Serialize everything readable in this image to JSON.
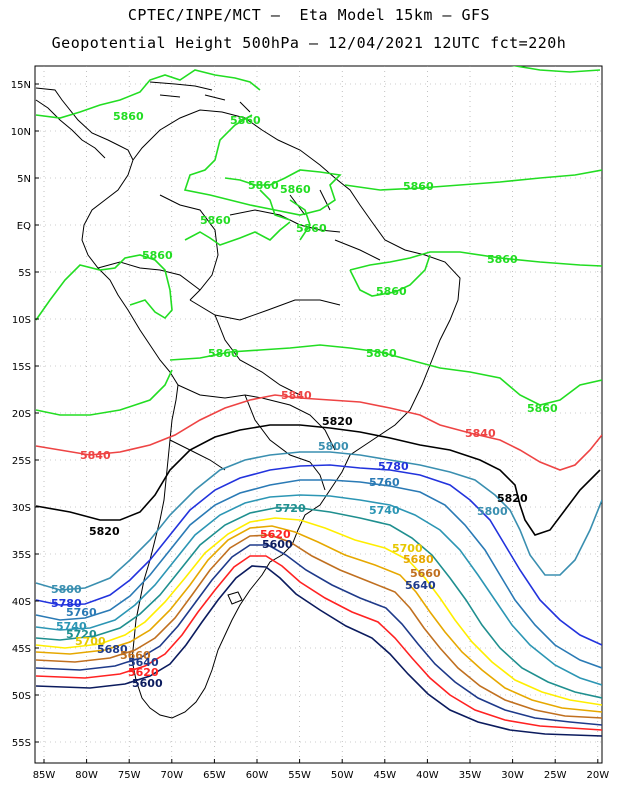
{
  "title": {
    "line1": "CPTEC/INPE/MCT –  Eta Model 15km – GFS",
    "line2": "Geopotential Height 500hPa – 12/04/2021 12UTC fct=220h"
  },
  "axes": {
    "lat_labels": [
      "15N",
      "10N",
      "5N",
      "EQ",
      "5S",
      "10S",
      "15S",
      "20S",
      "25S",
      "30S",
      "35S",
      "40S",
      "45S",
      "50S",
      "55S"
    ],
    "lon_labels": [
      "85W",
      "80W",
      "75W",
      "70W",
      "65W",
      "60W",
      "55W",
      "50W",
      "45W",
      "40W",
      "35W",
      "30W",
      "25W",
      "20W"
    ]
  },
  "colors": {
    "5860": "#22dd22",
    "5840": "#ee4444",
    "5820": "#000000",
    "5800": "#3a8fb0",
    "5780": "#2233dd",
    "5760": "#2a7ab5",
    "5740": "#2c96b4",
    "5720": "#1f8f8f",
    "5700": "#ffee00",
    "5680": "#e6a800",
    "5660": "#c07020",
    "5640": "#1e3a8a",
    "5620": "#ff2222",
    "5600": "#0b1b5e"
  },
  "contour_labels": {
    "g1": "5860",
    "g2": "5860",
    "g3": "5860",
    "g4": "5860",
    "g5": "5860",
    "g6": "5860",
    "g7": "5860",
    "g8": "5860",
    "g9": "5860",
    "g10": "5860",
    "g11": "5860",
    "g12": "5860",
    "g13": "5860",
    "r1": "5840",
    "r2": "5840",
    "r3": "5840",
    "k1": "5820",
    "k2": "5820",
    "k3": "5820",
    "s1": "5800",
    "s2": "5800",
    "s3": "5800",
    "b1": "5780",
    "b2": "5780",
    "m1": "5760",
    "m2": "5760",
    "c1": "5740",
    "c2": "5740",
    "t1": "5720",
    "t2": "5720",
    "y1": "5700",
    "y2": "5700",
    "o1": "5680",
    "o2": "5680",
    "w1": "5660",
    "w2": "5660",
    "n1": "5640",
    "n2": "5640",
    "p1": "5620",
    "p2": "5620",
    "d1": "5600",
    "d2": "5600"
  }
}
